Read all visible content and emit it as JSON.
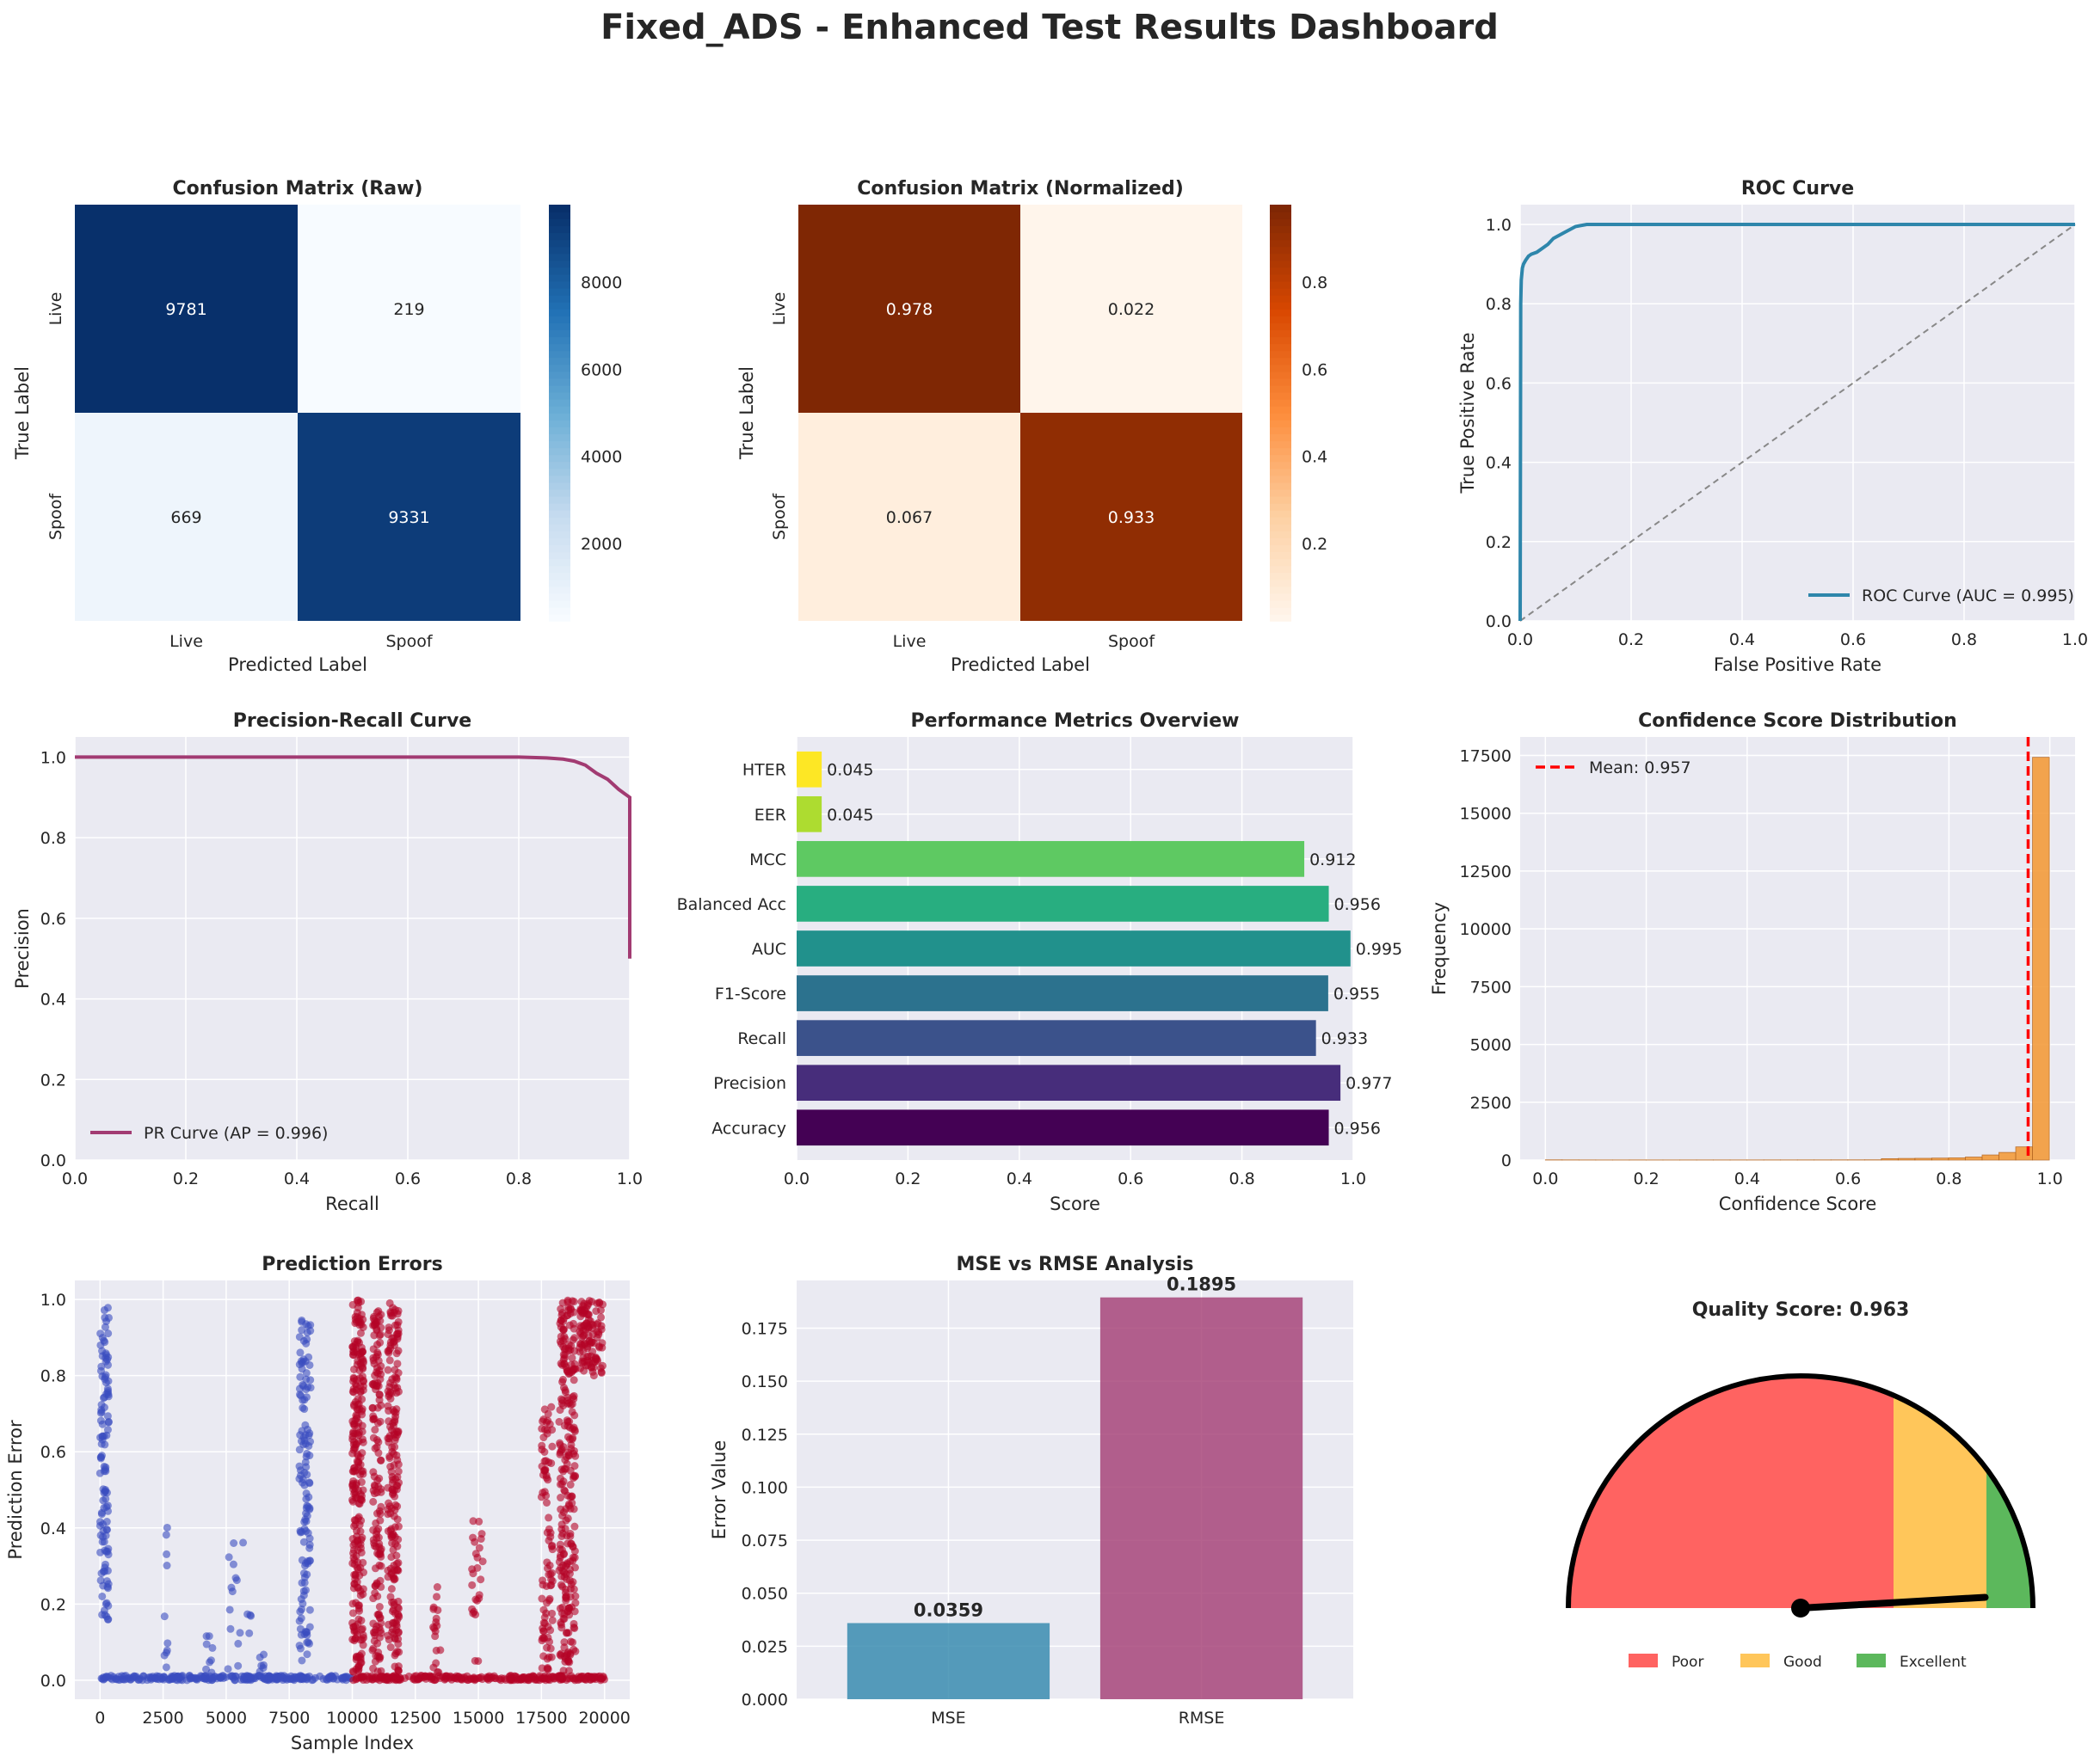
{
  "dashboard": {
    "title": "Fixed_ADS - Enhanced Test Results Dashboard"
  },
  "colors": {
    "panel_bg": "#eaeaf2",
    "grid": "#ffffff",
    "roc": "#2e86ab",
    "pr": "#a23b72",
    "hist": "#f39c3c",
    "mean_line": "#ff0000",
    "err_live": "#3b4cc0",
    "err_spoof": "#b40426",
    "mse": "#2e86ab",
    "rmse": "#a23b72",
    "gauge_poor": "#ff6361",
    "gauge_good": "#ffc65a",
    "gauge_excellent": "#5cb85c"
  },
  "chart_data": [
    {
      "id": "cm_raw",
      "type": "heatmap",
      "title": "Confusion Matrix (Raw)",
      "xlabel": "Predicted Label",
      "ylabel": "True Label",
      "x_categories": [
        "Live",
        "Spoof"
      ],
      "y_categories": [
        "Live",
        "Spoof"
      ],
      "values": [
        [
          9781,
          219
        ],
        [
          669,
          9331
        ]
      ],
      "colormap": "Blues",
      "colorbar_ticks": [
        2000,
        4000,
        6000,
        8000
      ],
      "colorbar_range": [
        219,
        9781
      ]
    },
    {
      "id": "cm_norm",
      "type": "heatmap",
      "title": "Confusion Matrix (Normalized)",
      "xlabel": "Predicted Label",
      "ylabel": "True Label",
      "x_categories": [
        "Live",
        "Spoof"
      ],
      "y_categories": [
        "Live",
        "Spoof"
      ],
      "values": [
        [
          0.978,
          0.022
        ],
        [
          0.067,
          0.933
        ]
      ],
      "value_labels": [
        [
          "0.978",
          "0.022"
        ],
        [
          "0.067",
          "0.933"
        ]
      ],
      "colormap": "Oranges",
      "colorbar_ticks": [
        0.2,
        0.4,
        0.6,
        0.8
      ],
      "colorbar_tick_labels": [
        "0.2",
        "0.4",
        "0.6",
        "0.8"
      ],
      "colorbar_range": [
        0.022,
        0.978
      ]
    },
    {
      "id": "roc",
      "type": "line",
      "title": "ROC Curve",
      "xlabel": "False Positive Rate",
      "ylabel": "True Positive Rate",
      "xlim": [
        0,
        1.0
      ],
      "ylim": [
        0,
        1.05
      ],
      "xticks": [
        "0.0",
        "0.2",
        "0.4",
        "0.6",
        "0.8",
        "1.0"
      ],
      "yticks": [
        "0.0",
        "0.2",
        "0.4",
        "0.6",
        "0.8",
        "1.0"
      ],
      "series": [
        {
          "name": "ROC Curve (AUC = 0.995)",
          "x": [
            0,
            0.001,
            0.002,
            0.004,
            0.006,
            0.01,
            0.015,
            0.02,
            0.03,
            0.04,
            0.05,
            0.06,
            0.08,
            0.1,
            0.12,
            0.2,
            0.4,
            0.6,
            0.8,
            1.0
          ],
          "y": [
            0,
            0.8,
            0.86,
            0.89,
            0.9,
            0.91,
            0.92,
            0.925,
            0.93,
            0.94,
            0.95,
            0.965,
            0.98,
            0.995,
            1.0,
            1.0,
            1.0,
            1.0,
            1.0,
            1.0
          ]
        },
        {
          "diagonal": true,
          "x": [
            0,
            1
          ],
          "y": [
            0,
            1
          ]
        }
      ],
      "legend": "lower-right"
    },
    {
      "id": "pr",
      "type": "line",
      "title": "Precision-Recall Curve",
      "xlabel": "Recall",
      "ylabel": "Precision",
      "xlim": [
        0,
        1.0
      ],
      "ylim": [
        0,
        1.05
      ],
      "xticks": [
        "0.0",
        "0.2",
        "0.4",
        "0.6",
        "0.8",
        "1.0"
      ],
      "yticks": [
        "0.0",
        "0.2",
        "0.4",
        "0.6",
        "0.8",
        "1.0"
      ],
      "series": [
        {
          "name": "PR Curve (AP = 0.996)",
          "x": [
            0,
            0.2,
            0.4,
            0.6,
            0.8,
            0.85,
            0.88,
            0.9,
            0.92,
            0.94,
            0.96,
            0.98,
            0.99,
            0.995,
            1.0,
            1.0
          ],
          "y": [
            1.0,
            1.0,
            1.0,
            1.0,
            1.0,
            0.998,
            0.995,
            0.99,
            0.98,
            0.96,
            0.945,
            0.92,
            0.91,
            0.905,
            0.9,
            0.5
          ]
        }
      ],
      "legend": "lower-left"
    },
    {
      "id": "metrics",
      "type": "bar",
      "orientation": "horizontal",
      "title": "Performance Metrics Overview",
      "xlabel": "Score",
      "xlim": [
        0,
        1.0
      ],
      "xticks": [
        "0.0",
        "0.2",
        "0.4",
        "0.6",
        "0.8",
        "1.0"
      ],
      "categories": [
        "Accuracy",
        "Precision",
        "Recall",
        "F1-Score",
        "AUC",
        "Balanced Acc",
        "MCC",
        "EER",
        "HTER"
      ],
      "values": [
        0.956,
        0.977,
        0.933,
        0.955,
        0.995,
        0.956,
        0.912,
        0.045,
        0.045
      ],
      "value_labels": [
        "0.956",
        "0.977",
        "0.933",
        "0.955",
        "0.995",
        "0.956",
        "0.912",
        "0.045",
        "0.045"
      ],
      "bar_colors": [
        "#440154",
        "#472d7b",
        "#3b528b",
        "#2c728e",
        "#21918c",
        "#28ae80",
        "#5ec962",
        "#addc30",
        "#fde725"
      ]
    },
    {
      "id": "conf_hist",
      "type": "bar",
      "subtype": "histogram",
      "title": "Confidence Score Distribution",
      "xlabel": "Confidence Score",
      "ylabel": "Frequency",
      "xlim": [
        -0.05,
        1.05
      ],
      "ylim": [
        0,
        18300
      ],
      "xticks": [
        "0.0",
        "0.2",
        "0.4",
        "0.6",
        "0.8",
        "1.0"
      ],
      "yticks": [
        "0",
        "2500",
        "5000",
        "7500",
        "10000",
        "12500",
        "15000",
        "17500"
      ],
      "bin_width": 0.0333,
      "bin_start": 0.0,
      "counts": [
        10,
        8,
        6,
        5,
        5,
        6,
        5,
        5,
        6,
        6,
        6,
        6,
        6,
        7,
        7,
        8,
        8,
        9,
        10,
        12,
        60,
        70,
        75,
        85,
        95,
        130,
        220,
        330,
        570,
        17420
      ],
      "mean": 0.957,
      "mean_label": "Mean: 0.957",
      "legend": "upper-left"
    },
    {
      "id": "pred_errors",
      "type": "scatter",
      "title": "Prediction Errors",
      "xlabel": "Sample Index",
      "ylabel": "Prediction Error",
      "xlim": [
        -1000,
        21000
      ],
      "ylim": [
        -0.05,
        1.05
      ],
      "xticks": [
        "0",
        "2500",
        "5000",
        "7500",
        "10000",
        "12500",
        "15000",
        "17500",
        "20000"
      ],
      "yticks": [
        "0.0",
        "0.2",
        "0.4",
        "0.6",
        "0.8",
        "1.0"
      ],
      "split_index": 10000,
      "series": [
        {
          "label": "live",
          "x_range": [
            0,
            10000
          ],
          "clusters": [
            {
              "x": [
                0,
                350
              ],
              "y": [
                0.15,
                0.98
              ],
              "n": 120
            },
            {
              "x": [
                2550,
                2700
              ],
              "y": [
                0.02,
                0.45
              ],
              "n": 10
            },
            {
              "x": [
                4200,
                4500
              ],
              "y": [
                0.02,
                0.15
              ],
              "n": 8
            },
            {
              "x": [
                5000,
                6000
              ],
              "y": [
                0.02,
                0.4
              ],
              "n": 18
            },
            {
              "x": [
                6300,
                6500
              ],
              "y": [
                0.02,
                0.08
              ],
              "n": 6
            },
            {
              "x": [
                7900,
                8350
              ],
              "y": [
                0.05,
                0.97
              ],
              "n": 130
            }
          ]
        },
        {
          "label": "spoof",
          "x_range": [
            10000,
            20000
          ],
          "clusters": [
            {
              "x": [
                10000,
                10450
              ],
              "y": [
                0.02,
                1.0
              ],
              "n": 260
            },
            {
              "x": [
                10800,
                11150
              ],
              "y": [
                0.02,
                0.97
              ],
              "n": 150
            },
            {
              "x": [
                11400,
                11850
              ],
              "y": [
                0.02,
                1.0
              ],
              "n": 200
            },
            {
              "x": [
                13200,
                13500
              ],
              "y": [
                0.02,
                0.25
              ],
              "n": 18
            },
            {
              "x": [
                14700,
                15200
              ],
              "y": [
                0.02,
                0.42
              ],
              "n": 25
            },
            {
              "x": [
                17500,
                17950
              ],
              "y": [
                0.02,
                0.72
              ],
              "n": 90
            },
            {
              "x": [
                18200,
                18850
              ],
              "y": [
                0.02,
                1.0
              ],
              "n": 260
            },
            {
              "x": [
                19000,
                19950
              ],
              "y": [
                0.8,
                1.0
              ],
              "n": 110
            }
          ]
        }
      ]
    },
    {
      "id": "mse_rmse",
      "type": "bar",
      "title": "MSE vs RMSE Analysis",
      "ylabel": "Error Value",
      "ylim": [
        0,
        0.1975
      ],
      "yticks": [
        "0.000",
        "0.025",
        "0.050",
        "0.075",
        "0.100",
        "0.125",
        "0.150",
        "0.175"
      ],
      "categories": [
        "MSE",
        "RMSE"
      ],
      "values": [
        0.0359,
        0.1895
      ],
      "value_labels": [
        "0.0359",
        "0.1895"
      ]
    },
    {
      "id": "gauge",
      "type": "pie",
      "subtype": "gauge",
      "title": "Quality Score: 0.963",
      "value": 0.963,
      "segments": [
        {
          "name": "Poor",
          "from": 0.0,
          "to": 0.7
        },
        {
          "name": "Good",
          "from": 0.7,
          "to": 0.9
        },
        {
          "name": "Excellent",
          "from": 0.9,
          "to": 1.0
        }
      ]
    }
  ]
}
